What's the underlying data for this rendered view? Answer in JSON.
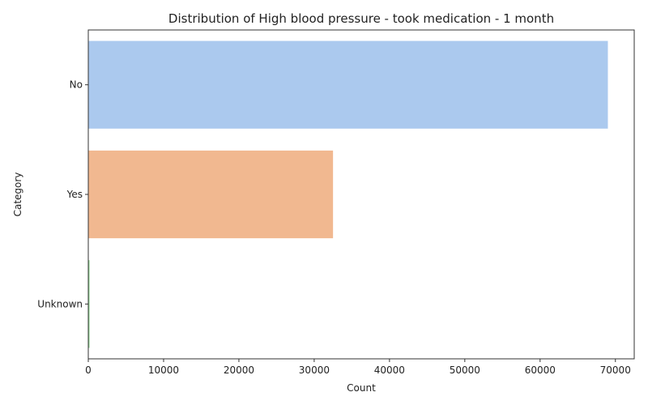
{
  "chart_data": {
    "type": "bar",
    "orientation": "horizontal",
    "title": "Distribution of High blood pressure - took medication - 1 month",
    "xlabel": "Count",
    "ylabel": "Category",
    "categories": [
      "No",
      "Yes",
      "Unknown"
    ],
    "values": [
      69000,
      32500,
      150
    ],
    "colors": [
      "#abc9ee",
      "#f1b890",
      "#8dd48f"
    ],
    "xlim": [
      0,
      72500
    ],
    "xticks": [
      0,
      10000,
      20000,
      30000,
      40000,
      50000,
      60000,
      70000
    ],
    "grid": false,
    "legend": "none"
  }
}
